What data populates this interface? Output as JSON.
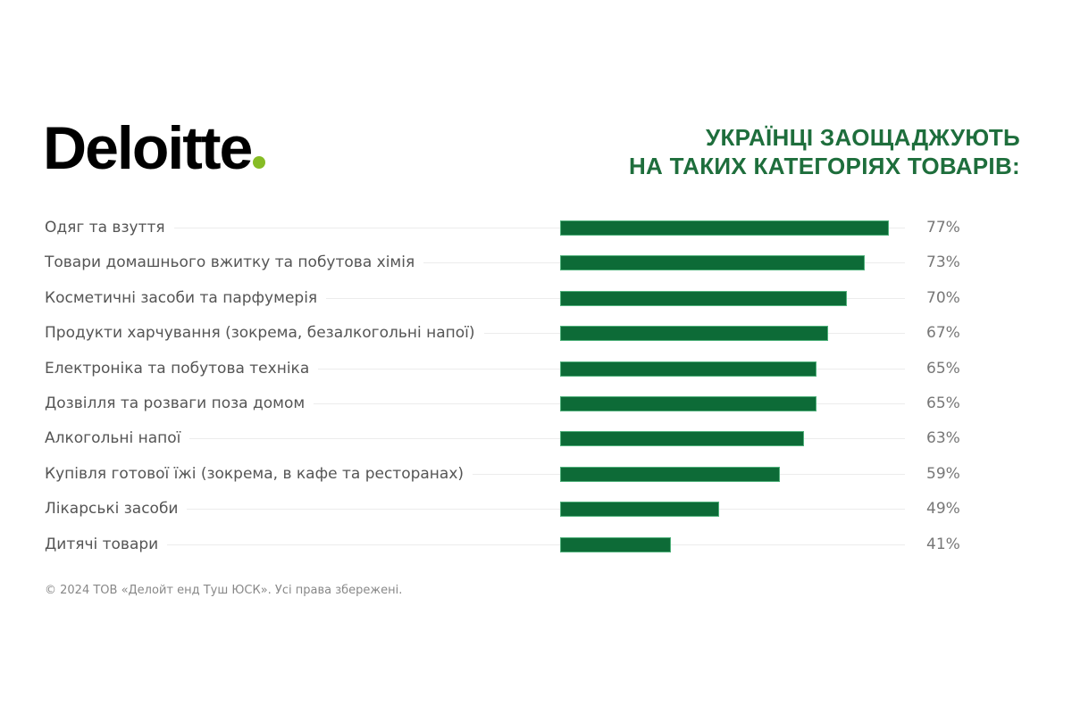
{
  "logo": {
    "text": "Deloitte",
    "dot_color": "#86bc25"
  },
  "title": {
    "line1": "УКРАЇНЦІ ЗАОЩАДЖУЮТЬ",
    "line2": "НА ТАКИХ КАТЕГОРІЯХ ТОВАРІВ:"
  },
  "colors": {
    "bar": "#0d6b37",
    "title": "#1e6e3c",
    "label": "#555555",
    "value": "#777777"
  },
  "footer": "© 2024 ТОВ «Делойт енд Туш ЮСК». Усі права збережені.",
  "rows": [
    {
      "label": "Одяг та взуття",
      "value": "77%",
      "num": 77
    },
    {
      "label": "Товари домашнього вжитку та побутова хімія",
      "value": "73%",
      "num": 73
    },
    {
      "label": "Косметичні засоби та парфумерія",
      "value": "70%",
      "num": 70
    },
    {
      "label": "Продукти харчування (зокрема, безалкогольні напої)",
      "value": "67%",
      "num": 67
    },
    {
      "label": "Електроніка та побутова техніка",
      "value": "65%",
      "num": 65
    },
    {
      "label": "Дозвілля та розваги поза домом",
      "value": "65%",
      "num": 65
    },
    {
      "label": "Алкогольні напої",
      "value": "63%",
      "num": 63
    },
    {
      "label": "Купівля готової їжі (зокрема, в кафе та ресторанах)",
      "value": "59%",
      "num": 59
    },
    {
      "label": "Лікарські засоби",
      "value": "49%",
      "num": 49
    },
    {
      "label": "Дитячі товари",
      "value": "41%",
      "num": 41
    }
  ],
  "chart_data": {
    "type": "bar",
    "orientation": "horizontal",
    "title": "Українці заощаджують на таких категоріях товарів:",
    "categories": [
      "Одяг та взуття",
      "Товари домашнього вжитку та побутова хімія",
      "Косметичні засоби та парфумерія",
      "Продукти харчування (зокрема, безалкогольні напої)",
      "Електроніка та побутова техніка",
      "Дозвілля та розваги поза домом",
      "Алкогольні напої",
      "Купівля готової їжі (зокрема, в кафе та ресторанах)",
      "Лікарські засоби",
      "Дитячі товари"
    ],
    "values": [
      77,
      73,
      70,
      67,
      65,
      65,
      63,
      59,
      49,
      41
    ],
    "unit": "%",
    "xlabel": "",
    "ylabel": "",
    "grid": false,
    "legend": null,
    "source": "© 2024 ТОВ «Делойт енд Туш ЮСК». Усі права збережені."
  }
}
